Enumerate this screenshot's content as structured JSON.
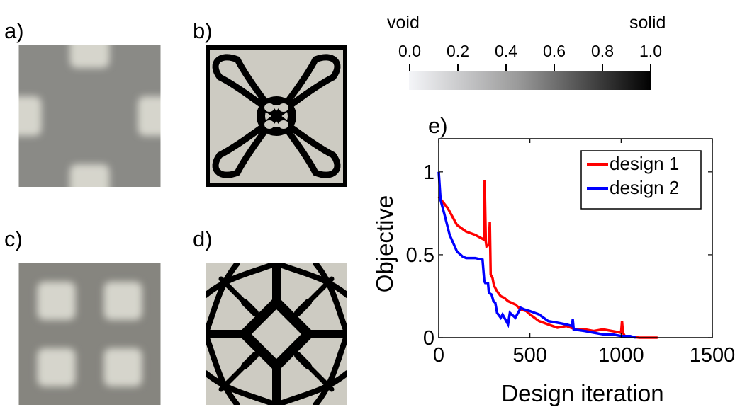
{
  "panels": {
    "a": {
      "label": "a)"
    },
    "b": {
      "label": "b)"
    },
    "c": {
      "label": "c)"
    },
    "d": {
      "label": "d)"
    },
    "e": {
      "label": "e)"
    }
  },
  "colors": {
    "background_gray": "#8a8a86",
    "pale": "#d6d5cc",
    "solid_black": "#000000",
    "void_fill": "#cdcbc2",
    "design1": "#ff0000",
    "design2": "#0000ff"
  },
  "colorbar": {
    "left_label": "void",
    "right_label": "solid",
    "ticks": [
      "0.0",
      "0.2",
      "0.4",
      "0.6",
      "0.8",
      "1.0"
    ],
    "tick_values": [
      0,
      0.2,
      0.4,
      0.6,
      0.8,
      1.0
    ]
  },
  "chart_data": {
    "type": "line",
    "title": "",
    "xlabel": "Design iteration",
    "ylabel": "Objective",
    "xlim": [
      0,
      1500
    ],
    "ylim": [
      0,
      1.2
    ],
    "xticks": [
      0,
      500,
      1000,
      1500
    ],
    "xtick_labels": [
      "0",
      "500",
      "1000",
      "1500"
    ],
    "yticks": [
      0,
      0.5,
      1
    ],
    "ytick_labels": [
      "0",
      "0.5",
      "1"
    ],
    "grid": false,
    "legend_position": "top-right",
    "series": [
      {
        "name": "design 1",
        "color": "#ff0000",
        "x": [
          0,
          50,
          100,
          150,
          200,
          250,
          252,
          258,
          262,
          275,
          280,
          285,
          295,
          300,
          305,
          320,
          340,
          360,
          380,
          400,
          420,
          450,
          480,
          500,
          550,
          600,
          650,
          700,
          750,
          800,
          850,
          900,
          950,
          1000,
          1005,
          1010,
          1015,
          1020,
          1100,
          1200
        ],
        "y": [
          0.85,
          0.78,
          0.68,
          0.64,
          0.62,
          0.59,
          0.95,
          0.58,
          0.55,
          0.56,
          0.7,
          0.38,
          0.36,
          0.33,
          0.31,
          0.28,
          0.25,
          0.24,
          0.22,
          0.21,
          0.2,
          0.17,
          0.16,
          0.14,
          0.1,
          0.08,
          0.06,
          0.07,
          0.05,
          0.05,
          0.04,
          0.05,
          0.04,
          0.03,
          0.1,
          0.03,
          0.02,
          0.01,
          0.0,
          0.0
        ]
      },
      {
        "name": "design 2",
        "color": "#0000ff",
        "x": [
          0,
          10,
          30,
          60,
          100,
          130,
          150,
          200,
          240,
          250,
          255,
          270,
          275,
          290,
          300,
          310,
          320,
          340,
          350,
          380,
          390,
          420,
          450,
          470,
          500,
          550,
          600,
          650,
          700,
          730,
          735,
          740,
          800,
          850,
          900,
          950,
          1000,
          1050,
          1080
        ],
        "y": [
          1.0,
          0.83,
          0.75,
          0.62,
          0.52,
          0.49,
          0.48,
          0.48,
          0.47,
          0.34,
          0.33,
          0.33,
          0.27,
          0.26,
          0.22,
          0.21,
          0.15,
          0.12,
          0.14,
          0.08,
          0.15,
          0.12,
          0.18,
          0.17,
          0.16,
          0.14,
          0.1,
          0.09,
          0.08,
          0.07,
          0.11,
          0.05,
          0.04,
          0.03,
          0.02,
          0.02,
          0.01,
          0.01,
          0.0
        ]
      }
    ]
  }
}
